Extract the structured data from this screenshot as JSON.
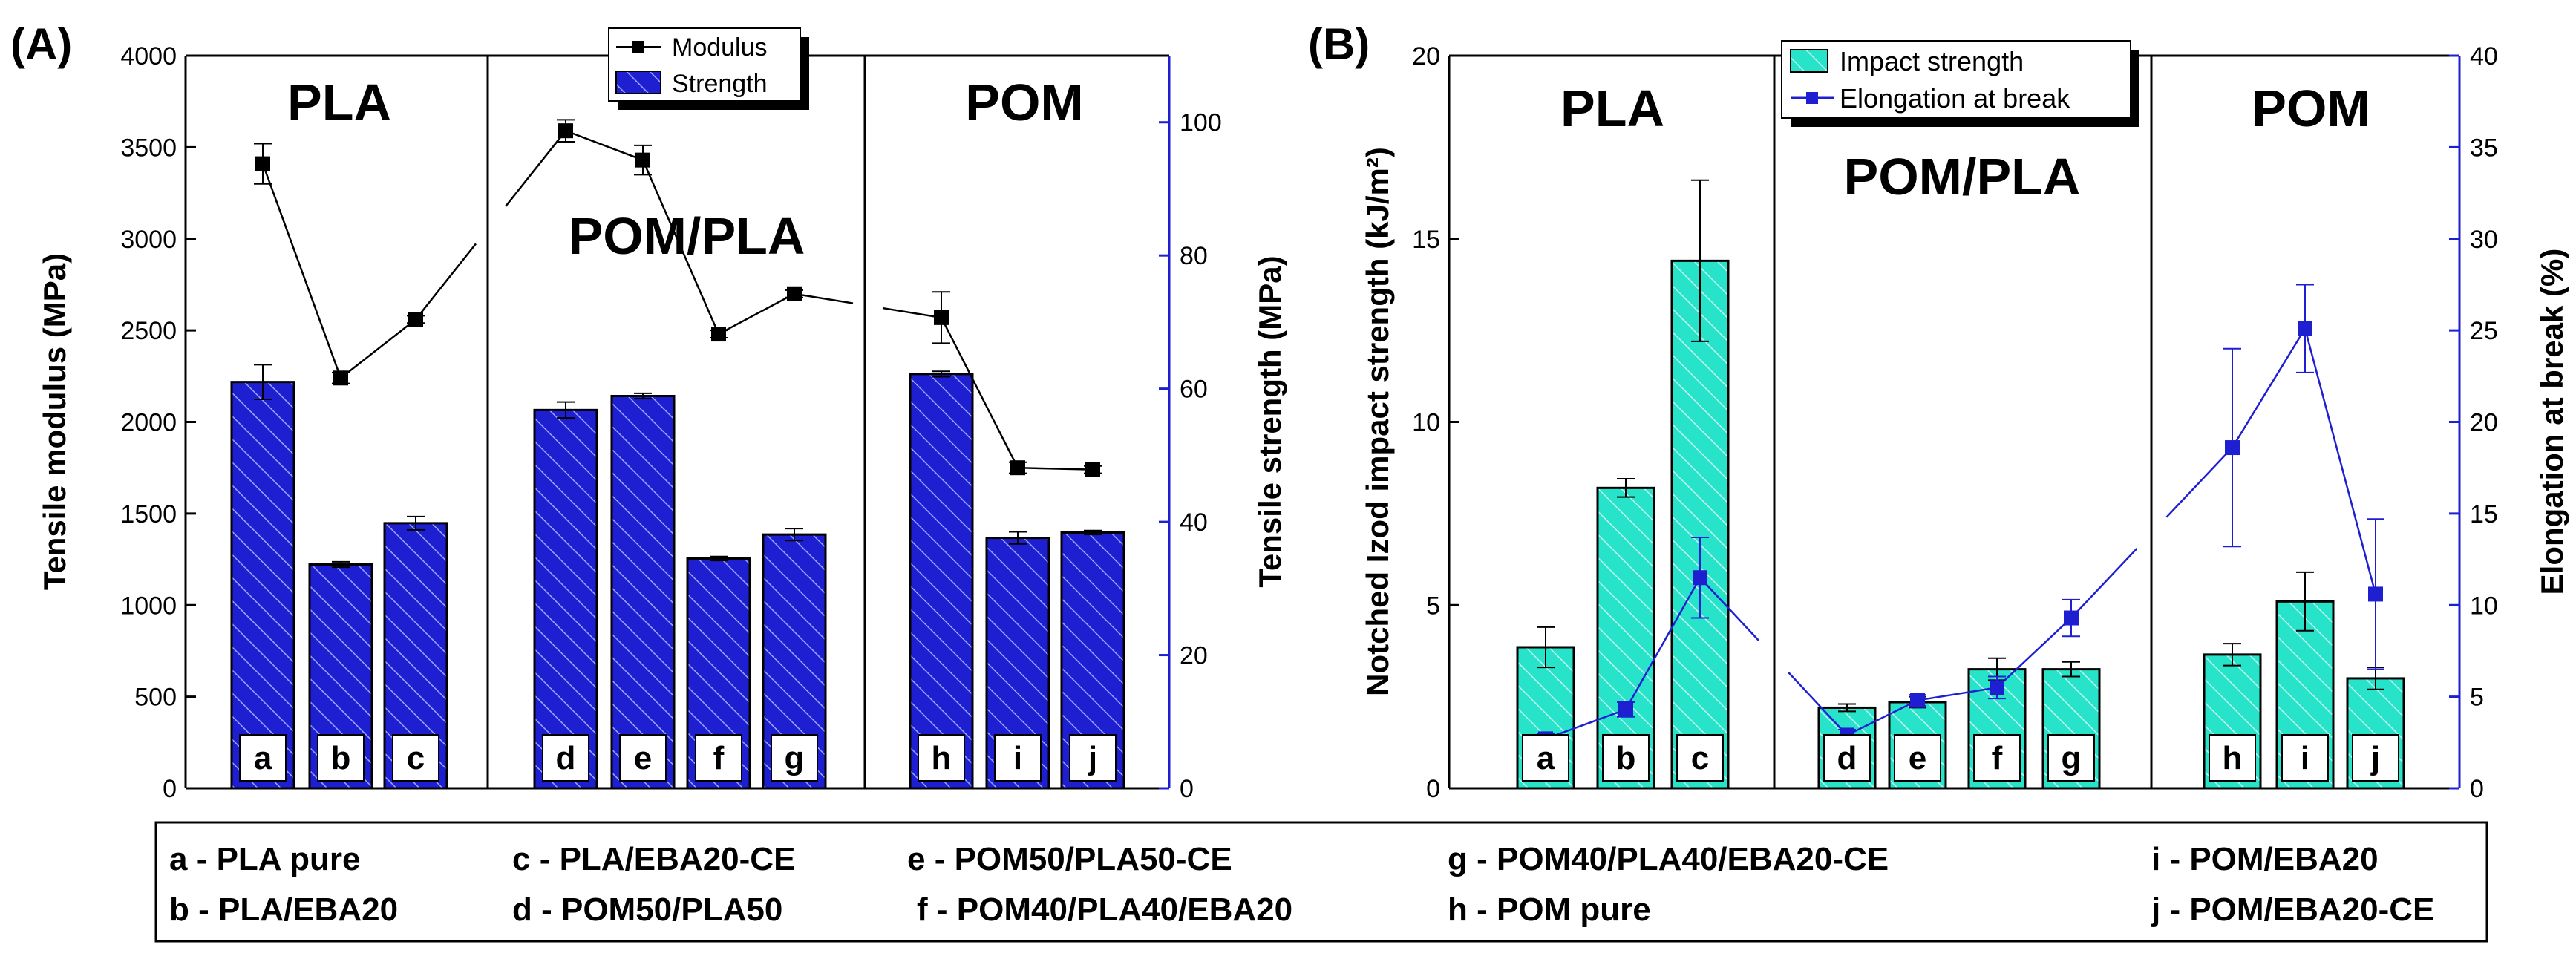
{
  "chart_data": [
    {
      "panel_label": "(A)",
      "type": "bar+line",
      "ylabel_left": "Tensile modulus (MPa)",
      "ylabel_right": "Tensile strength (MPa)",
      "ylim_left": [
        0,
        4000
      ],
      "ylim_right": [
        0,
        110
      ],
      "yticks_left": [
        "0",
        "500",
        "1000",
        "1500",
        "2000",
        "2500",
        "3000",
        "3500",
        "4000"
      ],
      "yticks_right": [
        "0",
        "20",
        "40",
        "60",
        "80",
        "100"
      ],
      "group_labels": [
        "PLA",
        "POM/PLA",
        "POM"
      ],
      "categories": [
        "a",
        "b",
        "c",
        "d",
        "e",
        "f",
        "g",
        "h",
        "i",
        "j"
      ],
      "legend": [
        "Modulus",
        "Strength"
      ],
      "series": [
        {
          "name": "Strength",
          "kind": "bar",
          "axis": "right",
          "values": [
            61,
            33.6,
            39.8,
            56.8,
            58.9,
            34.5,
            38.1,
            62.2,
            37.6,
            38.4
          ],
          "errors": [
            2.6,
            0.4,
            1.0,
            1.2,
            0.4,
            0.3,
            0.9,
            0.4,
            0.9,
            0.3
          ]
        },
        {
          "name": "Modulus",
          "kind": "line",
          "axis": "left",
          "values": [
            3410,
            2240,
            2560,
            3590,
            3430,
            2480,
            2700,
            2570,
            1750,
            1740
          ],
          "errors": [
            110,
            30,
            20,
            60,
            80,
            20,
            20,
            140,
            30,
            20
          ]
        }
      ]
    },
    {
      "panel_label": "(B)",
      "type": "bar+line",
      "ylabel_left": "Notched Izod impact strength (kJ/m²)",
      "ylabel_right": "Elongation at break (%)",
      "ylim_left": [
        0,
        20
      ],
      "ylim_right": [
        0,
        40
      ],
      "yticks_left": [
        "0",
        "5",
        "10",
        "15",
        "20"
      ],
      "yticks_right": [
        "0",
        "5",
        "10",
        "15",
        "20",
        "25",
        "30",
        "35",
        "40"
      ],
      "group_labels": [
        "PLA",
        "POM/PLA",
        "POM"
      ],
      "categories": [
        "a",
        "b",
        "c",
        "d",
        "e",
        "f",
        "g",
        "h",
        "i",
        "j"
      ],
      "legend": [
        "Impact strength",
        "Elongation at break"
      ],
      "series": [
        {
          "name": "Impact strength",
          "kind": "bar",
          "axis": "left",
          "values": [
            3.85,
            8.2,
            14.4,
            2.2,
            2.35,
            3.25,
            3.25,
            3.65,
            5.1,
            3.0
          ],
          "errors": [
            0.55,
            0.25,
            2.2,
            0.1,
            0.15,
            0.3,
            0.2,
            0.3,
            0.8,
            0.3
          ]
        },
        {
          "name": "Elongation at break",
          "kind": "line",
          "axis": "right",
          "values": [
            2.7,
            4.3,
            11.5,
            2.9,
            4.8,
            5.5,
            9.3,
            18.6,
            25.1,
            10.6
          ],
          "errors": [
            0.3,
            0.4,
            2.2,
            0.3,
            0.3,
            0.6,
            1.0,
            5.4,
            2.4,
            4.1
          ]
        }
      ]
    }
  ],
  "legend_table": [
    "a - PLA pure",
    "b - PLA/EBA20",
    "c - PLA/EBA20-CE",
    "d - POM50/PLA50",
    "e - POM50/PLA50-CE",
    "f - POM40/PLA40/EBA20",
    "g - POM40/PLA40/EBA20-CE",
    "h - POM pure",
    "i - POM/EBA20",
    "j - POM/EBA20-CE"
  ],
  "colors": {
    "bar_blue": "#1f1fd2",
    "bar_cyan": "#27e3c9",
    "right_axis_blue": "#1f1fd2",
    "line_black": "#000000",
    "line_blue": "#1f1fd2"
  }
}
